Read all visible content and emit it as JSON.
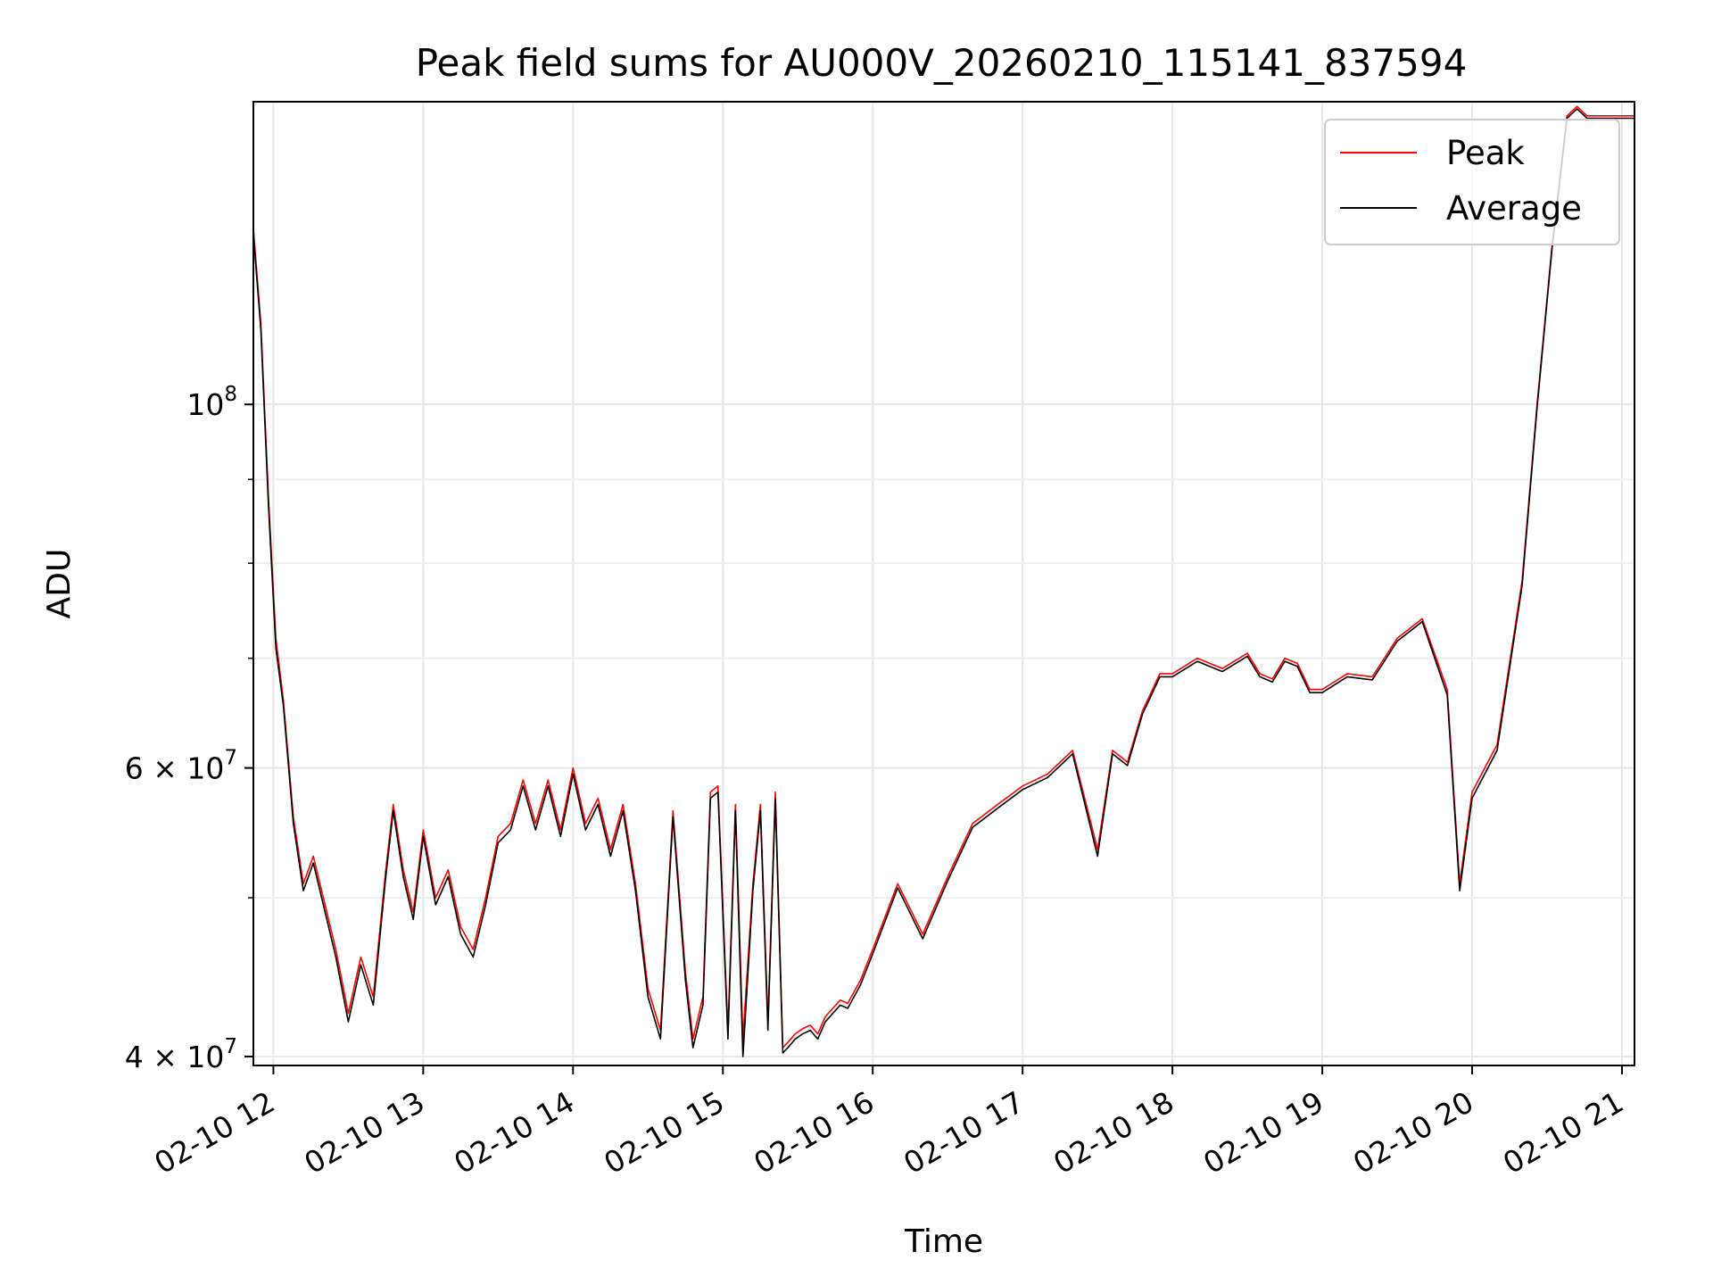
{
  "chart_data": {
    "type": "line",
    "title": "Peak field sums for AU000V_20260210_115141_837594",
    "xlabel": "Time",
    "ylabel": "ADU",
    "y_scale": "log",
    "xlim": [
      "2026-02-10 11:52",
      "2026-02-10 21:05"
    ],
    "ylim": [
      39500000,
      153000000
    ],
    "x_tick_labels": [
      "02-10 12",
      "02-10 13",
      "02-10 14",
      "02-10 15",
      "02-10 16",
      "02-10 17",
      "02-10 18",
      "02-10 19",
      "02-10 20",
      "02-10 21"
    ],
    "x_tick_times": [
      "2026-02-10 12:00",
      "2026-02-10 13:00",
      "2026-02-10 14:00",
      "2026-02-10 15:00",
      "2026-02-10 16:00",
      "2026-02-10 17:00",
      "2026-02-10 18:00",
      "2026-02-10 19:00",
      "2026-02-10 20:00",
      "2026-02-10 21:00"
    ],
    "y_major_ticks": [
      {
        "value": 40000000,
        "mantissa": "4",
        "exponent": "7"
      },
      {
        "value": 60000000,
        "mantissa": "6",
        "exponent": "7"
      },
      {
        "value": 100000000,
        "mantissa": "",
        "exponent": "8"
      }
    ],
    "y_minor_ticks": [
      50000000,
      70000000,
      80000000,
      90000000
    ],
    "grid": true,
    "legend_position": "top-right",
    "series": [
      {
        "name": "Peak",
        "color": "#ff0000",
        "x": [
          "2026-02-10 11:52",
          "2026-02-10 11:55",
          "2026-02-10 11:58",
          "2026-02-10 12:01",
          "2026-02-10 12:04",
          "2026-02-10 12:08",
          "2026-02-10 12:12",
          "2026-02-10 12:16",
          "2026-02-10 12:20",
          "2026-02-10 12:25",
          "2026-02-10 12:30",
          "2026-02-10 12:35",
          "2026-02-10 12:40",
          "2026-02-10 12:45",
          "2026-02-10 12:48",
          "2026-02-10 12:52",
          "2026-02-10 12:56",
          "2026-02-10 13:00",
          "2026-02-10 13:05",
          "2026-02-10 13:10",
          "2026-02-10 13:15",
          "2026-02-10 13:20",
          "2026-02-10 13:25",
          "2026-02-10 13:30",
          "2026-02-10 13:35",
          "2026-02-10 13:40",
          "2026-02-10 13:45",
          "2026-02-10 13:50",
          "2026-02-10 13:55",
          "2026-02-10 14:00",
          "2026-02-10 14:05",
          "2026-02-10 14:10",
          "2026-02-10 14:15",
          "2026-02-10 14:20",
          "2026-02-10 14:25",
          "2026-02-10 14:30",
          "2026-02-10 14:35",
          "2026-02-10 14:40",
          "2026-02-10 14:45",
          "2026-02-10 14:48",
          "2026-02-10 14:52",
          "2026-02-10 14:55",
          "2026-02-10 14:58",
          "2026-02-10 15:02",
          "2026-02-10 15:05",
          "2026-02-10 15:08",
          "2026-02-10 15:12",
          "2026-02-10 15:15",
          "2026-02-10 15:18",
          "2026-02-10 15:21",
          "2026-02-10 15:24",
          "2026-02-10 15:26",
          "2026-02-10 15:29",
          "2026-02-10 15:32",
          "2026-02-10 15:35",
          "2026-02-10 15:38",
          "2026-02-10 15:41",
          "2026-02-10 15:44",
          "2026-02-10 15:47",
          "2026-02-10 15:50",
          "2026-02-10 15:55",
          "2026-02-10 16:00",
          "2026-02-10 16:10",
          "2026-02-10 16:20",
          "2026-02-10 16:30",
          "2026-02-10 16:40",
          "2026-02-10 16:50",
          "2026-02-10 17:00",
          "2026-02-10 17:10",
          "2026-02-10 17:20",
          "2026-02-10 17:30",
          "2026-02-10 17:36",
          "2026-02-10 17:42",
          "2026-02-10 17:48",
          "2026-02-10 17:55",
          "2026-02-10 18:00",
          "2026-02-10 18:10",
          "2026-02-10 18:20",
          "2026-02-10 18:30",
          "2026-02-10 18:35",
          "2026-02-10 18:40",
          "2026-02-10 18:45",
          "2026-02-10 18:50",
          "2026-02-10 18:55",
          "2026-02-10 19:00",
          "2026-02-10 19:10",
          "2026-02-10 19:20",
          "2026-02-10 19:30",
          "2026-02-10 19:40",
          "2026-02-10 19:50",
          "2026-02-10 19:55",
          "2026-02-10 20:00",
          "2026-02-10 20:10",
          "2026-02-10 20:20",
          "2026-02-10 20:26",
          "2026-02-10 20:32",
          "2026-02-10 20:38",
          "2026-02-10 20:42",
          "2026-02-10 20:46",
          "2026-02-10 20:50",
          "2026-02-10 20:54",
          "2026-02-10 20:58",
          "2026-02-10 21:02",
          "2026-02-10 21:05"
        ],
        "values": [
          128000000,
          112000000,
          88000000,
          72000000,
          66000000,
          56000000,
          51000000,
          53000000,
          50000000,
          46500000,
          42500000,
          46000000,
          43500000,
          52000000,
          57000000,
          52000000,
          49000000,
          55000000,
          50000000,
          52000000,
          48000000,
          46500000,
          50000000,
          54500000,
          55500000,
          59000000,
          55500000,
          59000000,
          55000000,
          60000000,
          55500000,
          57500000,
          53500000,
          57000000,
          51000000,
          44000000,
          41500000,
          56500000,
          45000000,
          41000000,
          43500000,
          58000000,
          58500000,
          41500000,
          57000000,
          41000000,
          51000000,
          57000000,
          42000000,
          58000000,
          40500000,
          40800000,
          41300000,
          41600000,
          41800000,
          41300000,
          42300000,
          42800000,
          43300000,
          43100000,
          44500000,
          46500000,
          51000000,
          47500000,
          51500000,
          55500000,
          57000000,
          58500000,
          59500000,
          61500000,
          53500000,
          61500000,
          60500000,
          65000000,
          68500000,
          68500000,
          70000000,
          69000000,
          70500000,
          68500000,
          68000000,
          70000000,
          69500000,
          67000000,
          67000000,
          68500000,
          68200000,
          72000000,
          74000000,
          67000000,
          51000000,
          58000000,
          62000000,
          78000000,
          100000000,
          125000000,
          150000000,
          152000000,
          150000000,
          150000000,
          150000000,
          150000000,
          150000000,
          150000000
        ]
      },
      {
        "name": "Average",
        "color": "#000000",
        "x": [
          "2026-02-10 11:52",
          "2026-02-10 11:55",
          "2026-02-10 11:58",
          "2026-02-10 12:01",
          "2026-02-10 12:04",
          "2026-02-10 12:08",
          "2026-02-10 12:12",
          "2026-02-10 12:16",
          "2026-02-10 12:20",
          "2026-02-10 12:25",
          "2026-02-10 12:30",
          "2026-02-10 12:35",
          "2026-02-10 12:40",
          "2026-02-10 12:45",
          "2026-02-10 12:48",
          "2026-02-10 12:52",
          "2026-02-10 12:56",
          "2026-02-10 13:00",
          "2026-02-10 13:05",
          "2026-02-10 13:10",
          "2026-02-10 13:15",
          "2026-02-10 13:20",
          "2026-02-10 13:25",
          "2026-02-10 13:30",
          "2026-02-10 13:35",
          "2026-02-10 13:40",
          "2026-02-10 13:45",
          "2026-02-10 13:50",
          "2026-02-10 13:55",
          "2026-02-10 14:00",
          "2026-02-10 14:05",
          "2026-02-10 14:10",
          "2026-02-10 14:15",
          "2026-02-10 14:20",
          "2026-02-10 14:25",
          "2026-02-10 14:30",
          "2026-02-10 14:35",
          "2026-02-10 14:40",
          "2026-02-10 14:45",
          "2026-02-10 14:48",
          "2026-02-10 14:52",
          "2026-02-10 14:55",
          "2026-02-10 14:58",
          "2026-02-10 15:02",
          "2026-02-10 15:05",
          "2026-02-10 15:08",
          "2026-02-10 15:12",
          "2026-02-10 15:15",
          "2026-02-10 15:18",
          "2026-02-10 15:21",
          "2026-02-10 15:24",
          "2026-02-10 15:26",
          "2026-02-10 15:29",
          "2026-02-10 15:32",
          "2026-02-10 15:35",
          "2026-02-10 15:38",
          "2026-02-10 15:41",
          "2026-02-10 15:44",
          "2026-02-10 15:47",
          "2026-02-10 15:50",
          "2026-02-10 15:55",
          "2026-02-10 16:00",
          "2026-02-10 16:10",
          "2026-02-10 16:20",
          "2026-02-10 16:30",
          "2026-02-10 16:40",
          "2026-02-10 16:50",
          "2026-02-10 17:00",
          "2026-02-10 17:10",
          "2026-02-10 17:20",
          "2026-02-10 17:30",
          "2026-02-10 17:36",
          "2026-02-10 17:42",
          "2026-02-10 17:48",
          "2026-02-10 17:55",
          "2026-02-10 18:00",
          "2026-02-10 18:10",
          "2026-02-10 18:20",
          "2026-02-10 18:30",
          "2026-02-10 18:35",
          "2026-02-10 18:40",
          "2026-02-10 18:45",
          "2026-02-10 18:50",
          "2026-02-10 18:55",
          "2026-02-10 19:00",
          "2026-02-10 19:10",
          "2026-02-10 19:20",
          "2026-02-10 19:30",
          "2026-02-10 19:40",
          "2026-02-10 19:50",
          "2026-02-10 19:55",
          "2026-02-10 20:00",
          "2026-02-10 20:10",
          "2026-02-10 20:20",
          "2026-02-10 20:26",
          "2026-02-10 20:32",
          "2026-02-10 20:38",
          "2026-02-10 20:42",
          "2026-02-10 20:46",
          "2026-02-10 20:50",
          "2026-02-10 20:54",
          "2026-02-10 20:58",
          "2026-02-10 21:02",
          "2026-02-10 21:05"
        ],
        "values": [
          127000000,
          111000000,
          87000000,
          71000000,
          65500000,
          55500000,
          50500000,
          52500000,
          49500000,
          46000000,
          42000000,
          45500000,
          43000000,
          51500000,
          56500000,
          51500000,
          48500000,
          54500000,
          49500000,
          51500000,
          47500000,
          46000000,
          49500000,
          54000000,
          55000000,
          58500000,
          55000000,
          58500000,
          54500000,
          59500000,
          55000000,
          57000000,
          53000000,
          56500000,
          50500000,
          43500000,
          41000000,
          56000000,
          44500000,
          40500000,
          43000000,
          57500000,
          58000000,
          41000000,
          56500000,
          40000000,
          50500000,
          56500000,
          41500000,
          57500000,
          40200000,
          40500000,
          41000000,
          41300000,
          41500000,
          41000000,
          42000000,
          42500000,
          43000000,
          42800000,
          44200000,
          46200000,
          50700000,
          47200000,
          51200000,
          55200000,
          56700000,
          58200000,
          59200000,
          61200000,
          53000000,
          61200000,
          60200000,
          64700000,
          68200000,
          68200000,
          69700000,
          68700000,
          70200000,
          68200000,
          67700000,
          69700000,
          69200000,
          66700000,
          66700000,
          68200000,
          67900000,
          71700000,
          73700000,
          66500000,
          50500000,
          57500000,
          61500000,
          77500000,
          99500000,
          124500000,
          149500000,
          151500000,
          149500000,
          149500000,
          149500000,
          149500000,
          149500000,
          149500000
        ]
      }
    ]
  }
}
